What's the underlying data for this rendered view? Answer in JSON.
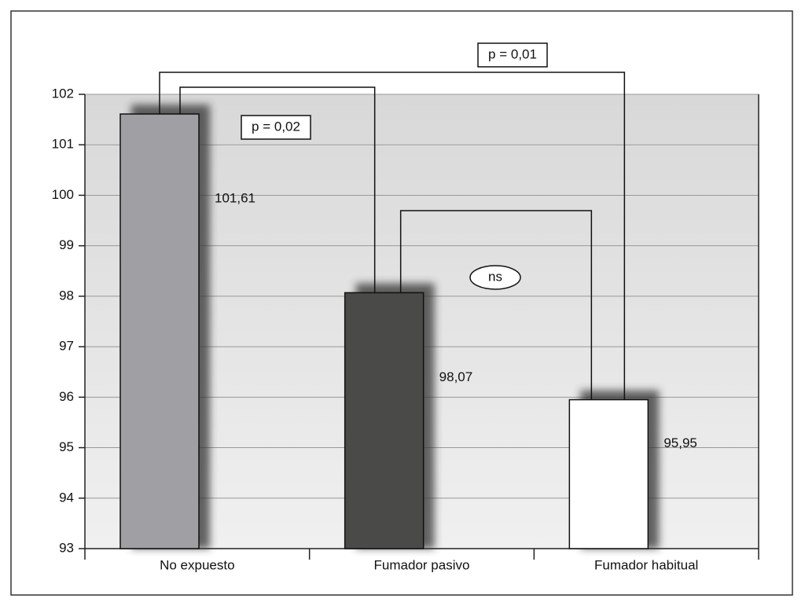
{
  "chart_data": {
    "type": "bar",
    "categories": [
      "No expuesto",
      "Fumador pasivo",
      "Fumador habitual"
    ],
    "values": [
      101.61,
      98.07,
      95.95
    ],
    "value_labels": [
      "101,61",
      "98,07",
      "95,95"
    ],
    "colors": [
      "#a09fa3",
      "#4a4b48",
      "#ffffff"
    ],
    "ylim": [
      93,
      102
    ],
    "yticks": [
      93,
      94,
      95,
      96,
      97,
      98,
      99,
      100,
      101,
      102
    ],
    "grid": true,
    "annotations": [
      "p = 0,01",
      "p = 0,02",
      "ns"
    ]
  }
}
